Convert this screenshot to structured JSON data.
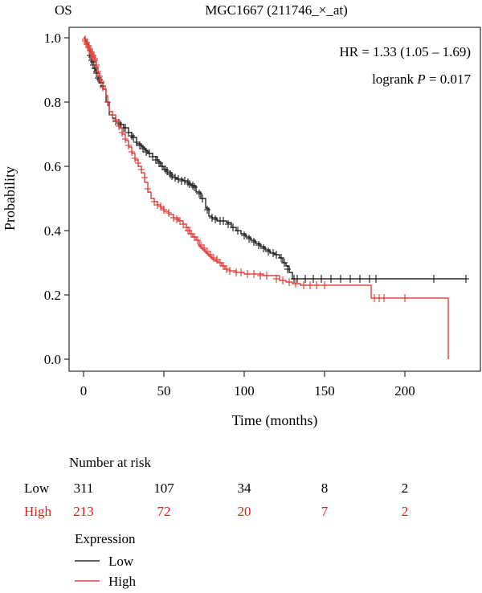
{
  "chart_data": {
    "type": "line",
    "panel_label": "OS",
    "title": "MGC1667 (211746_×_at)",
    "xlabel": "Time (months)",
    "ylabel": "Probability",
    "xlim": [
      0,
      240
    ],
    "ylim": [
      0,
      1.0
    ],
    "x_ticks": [
      0,
      50,
      100,
      150,
      200
    ],
    "y_ticks": [
      0.0,
      0.2,
      0.4,
      0.6,
      0.8,
      1.0
    ],
    "x_tick_labels": [
      "0",
      "50",
      "100",
      "150",
      "200"
    ],
    "y_tick_labels": [
      "0.0",
      "0.2",
      "0.4",
      "0.6",
      "0.8",
      "1.0"
    ],
    "annotations": {
      "hr": "HR = 1.33 (1.05 – 1.69)",
      "logrank_prefix": "logrank ",
      "logrank_p": "P",
      "logrank_suffix": " = 0.017"
    },
    "series": [
      {
        "name": "Low",
        "color": "#000000",
        "steps": [
          [
            0,
            1.0
          ],
          [
            1,
            0.99
          ],
          [
            2,
            0.98
          ],
          [
            3,
            0.96
          ],
          [
            4,
            0.945
          ],
          [
            5,
            0.93
          ],
          [
            6,
            0.915
          ],
          [
            7,
            0.9
          ],
          [
            8,
            0.89
          ],
          [
            10,
            0.86
          ],
          [
            12,
            0.84
          ],
          [
            14,
            0.8
          ],
          [
            16,
            0.76
          ],
          [
            18,
            0.75
          ],
          [
            20,
            0.74
          ],
          [
            22,
            0.73
          ],
          [
            25,
            0.72
          ],
          [
            28,
            0.705
          ],
          [
            30,
            0.69
          ],
          [
            33,
            0.67
          ],
          [
            36,
            0.66
          ],
          [
            38,
            0.65
          ],
          [
            40,
            0.64
          ],
          [
            43,
            0.63
          ],
          [
            46,
            0.615
          ],
          [
            48,
            0.6
          ],
          [
            50,
            0.59
          ],
          [
            52,
            0.58
          ],
          [
            55,
            0.565
          ],
          [
            58,
            0.56
          ],
          [
            62,
            0.555
          ],
          [
            65,
            0.545
          ],
          [
            67,
            0.54
          ],
          [
            70,
            0.52
          ],
          [
            73,
            0.5
          ],
          [
            76,
            0.47
          ],
          [
            78,
            0.445
          ],
          [
            80,
            0.44
          ],
          [
            83,
            0.43
          ],
          [
            86,
            0.43
          ],
          [
            89,
            0.425
          ],
          [
            92,
            0.41
          ],
          [
            95,
            0.4
          ],
          [
            98,
            0.39
          ],
          [
            101,
            0.38
          ],
          [
            104,
            0.37
          ],
          [
            107,
            0.36
          ],
          [
            110,
            0.35
          ],
          [
            113,
            0.34
          ],
          [
            116,
            0.33
          ],
          [
            119,
            0.325
          ],
          [
            122,
            0.315
          ],
          [
            124,
            0.3
          ],
          [
            126,
            0.29
          ],
          [
            128,
            0.27
          ],
          [
            130,
            0.25
          ],
          [
            238,
            0.25
          ]
        ],
        "censored": [
          [
            4,
            0.945
          ],
          [
            5,
            0.94
          ],
          [
            5,
            0.93
          ],
          [
            6,
            0.925
          ],
          [
            6,
            0.915
          ],
          [
            7,
            0.905
          ],
          [
            8,
            0.895
          ],
          [
            8,
            0.89
          ],
          [
            9,
            0.875
          ],
          [
            10,
            0.87
          ],
          [
            11,
            0.86
          ],
          [
            12,
            0.85
          ],
          [
            20,
            0.74
          ],
          [
            22,
            0.735
          ],
          [
            23,
            0.73
          ],
          [
            25,
            0.72
          ],
          [
            26,
            0.72
          ],
          [
            28,
            0.705
          ],
          [
            30,
            0.695
          ],
          [
            31,
            0.69
          ],
          [
            33,
            0.675
          ],
          [
            35,
            0.665
          ],
          [
            37,
            0.655
          ],
          [
            39,
            0.645
          ],
          [
            41,
            0.64
          ],
          [
            43,
            0.63
          ],
          [
            45,
            0.62
          ],
          [
            47,
            0.61
          ],
          [
            49,
            0.6
          ],
          [
            51,
            0.59
          ],
          [
            52,
            0.585
          ],
          [
            54,
            0.575
          ],
          [
            55,
            0.57
          ],
          [
            57,
            0.565
          ],
          [
            59,
            0.56
          ],
          [
            61,
            0.555
          ],
          [
            63,
            0.555
          ],
          [
            65,
            0.55
          ],
          [
            66,
            0.545
          ],
          [
            68,
            0.54
          ],
          [
            69,
            0.535
          ],
          [
            72,
            0.515
          ],
          [
            74,
            0.5
          ],
          [
            77,
            0.465
          ],
          [
            80,
            0.44
          ],
          [
            82,
            0.435
          ],
          [
            85,
            0.43
          ],
          [
            87,
            0.43
          ],
          [
            90,
            0.42
          ],
          [
            93,
            0.41
          ],
          [
            96,
            0.4
          ],
          [
            100,
            0.385
          ],
          [
            103,
            0.375
          ],
          [
            106,
            0.365
          ],
          [
            109,
            0.355
          ],
          [
            112,
            0.345
          ],
          [
            115,
            0.335
          ],
          [
            118,
            0.33
          ],
          [
            120,
            0.325
          ],
          [
            123,
            0.315
          ],
          [
            125,
            0.3
          ],
          [
            127,
            0.28
          ],
          [
            131,
            0.25
          ],
          [
            133,
            0.25
          ],
          [
            138,
            0.25
          ],
          [
            143,
            0.25
          ],
          [
            148,
            0.25
          ],
          [
            154,
            0.25
          ],
          [
            160,
            0.25
          ],
          [
            166,
            0.25
          ],
          [
            172,
            0.25
          ],
          [
            178,
            0.25
          ],
          [
            182,
            0.25
          ],
          [
            218,
            0.25
          ],
          [
            238,
            0.25
          ]
        ]
      },
      {
        "name": "High",
        "color": "#e0201b",
        "steps": [
          [
            0,
            1.0
          ],
          [
            1,
            0.99
          ],
          [
            2,
            0.98
          ],
          [
            3,
            0.97
          ],
          [
            4,
            0.96
          ],
          [
            5,
            0.95
          ],
          [
            6,
            0.94
          ],
          [
            7,
            0.93
          ],
          [
            8,
            0.91
          ],
          [
            9,
            0.89
          ],
          [
            10,
            0.87
          ],
          [
            11,
            0.86
          ],
          [
            12,
            0.84
          ],
          [
            14,
            0.82
          ],
          [
            15,
            0.79
          ],
          [
            16,
            0.77
          ],
          [
            18,
            0.76
          ],
          [
            20,
            0.74
          ],
          [
            22,
            0.72
          ],
          [
            24,
            0.7
          ],
          [
            26,
            0.68
          ],
          [
            28,
            0.66
          ],
          [
            30,
            0.64
          ],
          [
            32,
            0.62
          ],
          [
            34,
            0.6
          ],
          [
            36,
            0.58
          ],
          [
            38,
            0.55
          ],
          [
            40,
            0.52
          ],
          [
            42,
            0.5
          ],
          [
            44,
            0.49
          ],
          [
            46,
            0.48
          ],
          [
            48,
            0.47
          ],
          [
            50,
            0.46
          ],
          [
            53,
            0.45
          ],
          [
            56,
            0.44
          ],
          [
            59,
            0.43
          ],
          [
            62,
            0.42
          ],
          [
            64,
            0.41
          ],
          [
            66,
            0.39
          ],
          [
            68,
            0.38
          ],
          [
            70,
            0.37
          ],
          [
            72,
            0.35
          ],
          [
            74,
            0.34
          ],
          [
            76,
            0.33
          ],
          [
            78,
            0.32
          ],
          [
            80,
            0.31
          ],
          [
            82,
            0.305
          ],
          [
            84,
            0.3
          ],
          [
            86,
            0.29
          ],
          [
            88,
            0.28
          ],
          [
            91,
            0.275
          ],
          [
            95,
            0.27
          ],
          [
            100,
            0.265
          ],
          [
            105,
            0.265
          ],
          [
            112,
            0.26
          ],
          [
            118,
            0.26
          ],
          [
            122,
            0.245
          ],
          [
            126,
            0.24
          ],
          [
            130,
            0.235
          ],
          [
            135,
            0.23
          ],
          [
            179,
            0.19
          ],
          [
            227,
            0.0
          ]
        ],
        "censored": [
          [
            1,
            0.995
          ],
          [
            1,
            0.99
          ],
          [
            2,
            0.985
          ],
          [
            2,
            0.98
          ],
          [
            3,
            0.975
          ],
          [
            3,
            0.97
          ],
          [
            4,
            0.965
          ],
          [
            4,
            0.96
          ],
          [
            5,
            0.955
          ],
          [
            5,
            0.95
          ],
          [
            6,
            0.945
          ],
          [
            6,
            0.94
          ],
          [
            7,
            0.935
          ],
          [
            7,
            0.93
          ],
          [
            8,
            0.915
          ],
          [
            9,
            0.895
          ],
          [
            10,
            0.88
          ],
          [
            11,
            0.865
          ],
          [
            12,
            0.845
          ],
          [
            15,
            0.8
          ],
          [
            18,
            0.76
          ],
          [
            20,
            0.745
          ],
          [
            22,
            0.725
          ],
          [
            24,
            0.705
          ],
          [
            26,
            0.685
          ],
          [
            28,
            0.665
          ],
          [
            30,
            0.645
          ],
          [
            32,
            0.625
          ],
          [
            34,
            0.61
          ],
          [
            36,
            0.59
          ],
          [
            38,
            0.565
          ],
          [
            40,
            0.53
          ],
          [
            44,
            0.49
          ],
          [
            46,
            0.48
          ],
          [
            48,
            0.475
          ],
          [
            50,
            0.465
          ],
          [
            53,
            0.455
          ],
          [
            56,
            0.44
          ],
          [
            58,
            0.435
          ],
          [
            60,
            0.43
          ],
          [
            62,
            0.42
          ],
          [
            64,
            0.41
          ],
          [
            65,
            0.4
          ],
          [
            67,
            0.39
          ],
          [
            69,
            0.38
          ],
          [
            71,
            0.37
          ],
          [
            73,
            0.355
          ],
          [
            75,
            0.345
          ],
          [
            77,
            0.335
          ],
          [
            79,
            0.325
          ],
          [
            81,
            0.315
          ],
          [
            83,
            0.31
          ],
          [
            85,
            0.3
          ],
          [
            87,
            0.29
          ],
          [
            89,
            0.28
          ],
          [
            91,
            0.275
          ],
          [
            95,
            0.27
          ],
          [
            98,
            0.27
          ],
          [
            102,
            0.265
          ],
          [
            106,
            0.265
          ],
          [
            110,
            0.26
          ],
          [
            114,
            0.26
          ],
          [
            120,
            0.25
          ],
          [
            124,
            0.245
          ],
          [
            128,
            0.24
          ],
          [
            132,
            0.235
          ],
          [
            137,
            0.23
          ],
          [
            141,
            0.23
          ],
          [
            145,
            0.23
          ],
          [
            150,
            0.23
          ],
          [
            181,
            0.19
          ],
          [
            184,
            0.19
          ],
          [
            187,
            0.19
          ],
          [
            200,
            0.19
          ]
        ]
      }
    ],
    "risk_table": {
      "header": "Number at risk",
      "rows": [
        {
          "label": "Low",
          "color": "#000000",
          "values": [
            "311",
            "107",
            "34",
            "8",
            "2"
          ]
        },
        {
          "label": "High",
          "color": "#e0201b",
          "values": [
            "213",
            "72",
            "20",
            "7",
            "2"
          ]
        }
      ]
    },
    "legend": {
      "title": "Expression",
      "position": "bottom-left",
      "items": [
        {
          "label": "Low",
          "color": "#000000"
        },
        {
          "label": "High",
          "color": "#e0201b"
        }
      ]
    }
  }
}
